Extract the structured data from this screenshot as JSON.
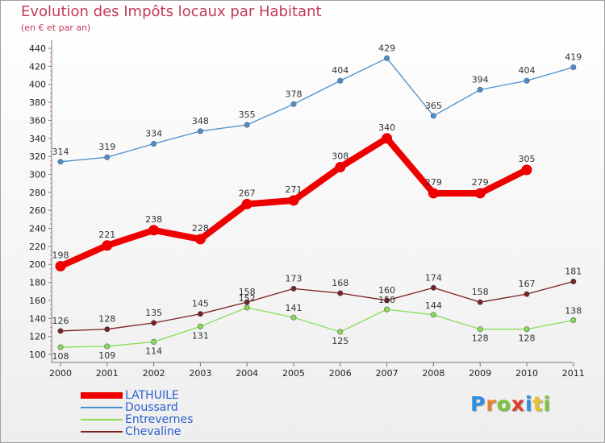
{
  "title": "Evolution des Impôts locaux par Habitant",
  "subtitle": "(en € et par an)",
  "logo": {
    "letters": [
      {
        "ch": "P",
        "color": "#2f8fe0"
      },
      {
        "ch": "r",
        "color": "#e8822a"
      },
      {
        "ch": "o",
        "color": "#7cc43a"
      },
      {
        "ch": "x",
        "color": "#e03a2a"
      },
      {
        "ch": "i",
        "color": "#2f8fe0"
      },
      {
        "ch": "t",
        "color": "#e8c22a"
      },
      {
        "ch": "i",
        "color": "#7cc43a"
      }
    ]
  },
  "chart_data": {
    "type": "line",
    "x": [
      "2000",
      "2001",
      "2002",
      "2003",
      "2004",
      "2005",
      "2006",
      "2007",
      "2008",
      "2009",
      "2010",
      "2011"
    ],
    "ylim": [
      100,
      440
    ],
    "yticks": [
      100,
      120,
      140,
      160,
      180,
      200,
      220,
      240,
      260,
      280,
      300,
      320,
      340,
      360,
      380,
      400,
      420,
      440
    ],
    "grid": false,
    "legend": "bottom-left",
    "series": [
      {
        "name": "LATHUILE",
        "color": "#ee0000",
        "values": [
          198,
          221,
          238,
          228,
          267,
          271,
          308,
          340,
          279,
          279,
          305,
          null
        ]
      },
      {
        "name": "Doussard",
        "color": "#4a90d0",
        "values": [
          314,
          319,
          334,
          348,
          355,
          378,
          404,
          429,
          365,
          394,
          404,
          419
        ]
      },
      {
        "name": "Entrevernes",
        "color": "#88dd55",
        "values": [
          108,
          109,
          114,
          131,
          152,
          141,
          125,
          150,
          144,
          128,
          128,
          138
        ]
      },
      {
        "name": "Chevaline",
        "color": "#7a2020",
        "values": [
          126,
          128,
          135,
          145,
          158,
          173,
          168,
          160,
          174,
          158,
          167,
          181
        ]
      }
    ]
  }
}
